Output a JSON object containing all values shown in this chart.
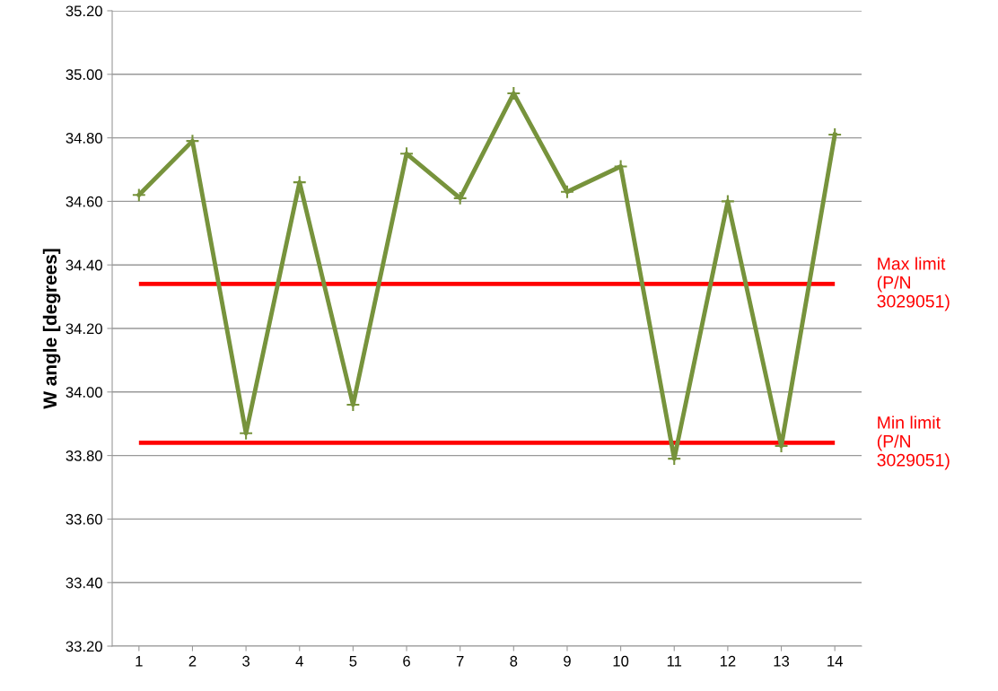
{
  "chart_data": {
    "type": "line",
    "ylabel": "W angle [degrees]",
    "categories": [
      "1",
      "2",
      "3",
      "4",
      "5",
      "6",
      "7",
      "8",
      "9",
      "10",
      "11",
      "12",
      "13",
      "14"
    ],
    "series": [
      {
        "color": "#77933c",
        "values": [
          34.62,
          34.79,
          33.87,
          34.66,
          33.96,
          34.75,
          34.61,
          34.94,
          34.63,
          34.71,
          33.79,
          34.6,
          33.83,
          34.81
        ]
      }
    ],
    "ylim": [
      33.2,
      35.2
    ],
    "yticks": [
      {
        "value": 33.2,
        "label": "33.20"
      },
      {
        "value": 33.4,
        "label": "33.40"
      },
      {
        "value": 33.6,
        "label": "33.60"
      },
      {
        "value": 33.8,
        "label": "33.80"
      },
      {
        "value": 34.0,
        "label": "34.00"
      },
      {
        "value": 34.2,
        "label": "34.20"
      },
      {
        "value": 34.4,
        "label": "34.40"
      },
      {
        "value": 34.6,
        "label": "34.60"
      },
      {
        "value": 34.8,
        "label": "34.80"
      },
      {
        "value": 35.0,
        "label": "35.00"
      },
      {
        "value": 35.2,
        "label": "35.20"
      }
    ],
    "ref_lines": [
      {
        "axis": "y",
        "value": 34.34,
        "label": "Max limit\n(P/N\n3029051)",
        "color": "#ff0000"
      },
      {
        "axis": "y",
        "value": 33.84,
        "label": "Min limit\n(P/N\n3029051)",
        "color": "#ff0000"
      }
    ],
    "grid": "y",
    "marker": "cross",
    "line_style": "solid",
    "legend": false
  }
}
